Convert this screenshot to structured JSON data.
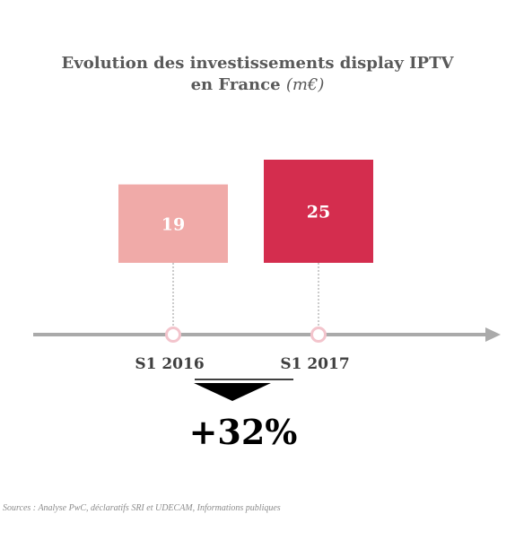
{
  "chart_data": {
    "type": "bar",
    "title_line1": "Evolution des investissements display IPTV",
    "title_line2": "en France",
    "unit": "(m€)",
    "categories": [
      "S1 2016",
      "S1 2017"
    ],
    "values": [
      19,
      25
    ],
    "bar_colors": [
      "#f0aaa8",
      "#d42d4e"
    ],
    "axis_color": "#aaaaaa",
    "marker_color": "#f3c4cc",
    "change_label": "+32%",
    "change_direction": "down-arrow-icon"
  },
  "source": "Sources : Analyse PwC, déclaratifs SRI et UDECAM, Informations publiques"
}
